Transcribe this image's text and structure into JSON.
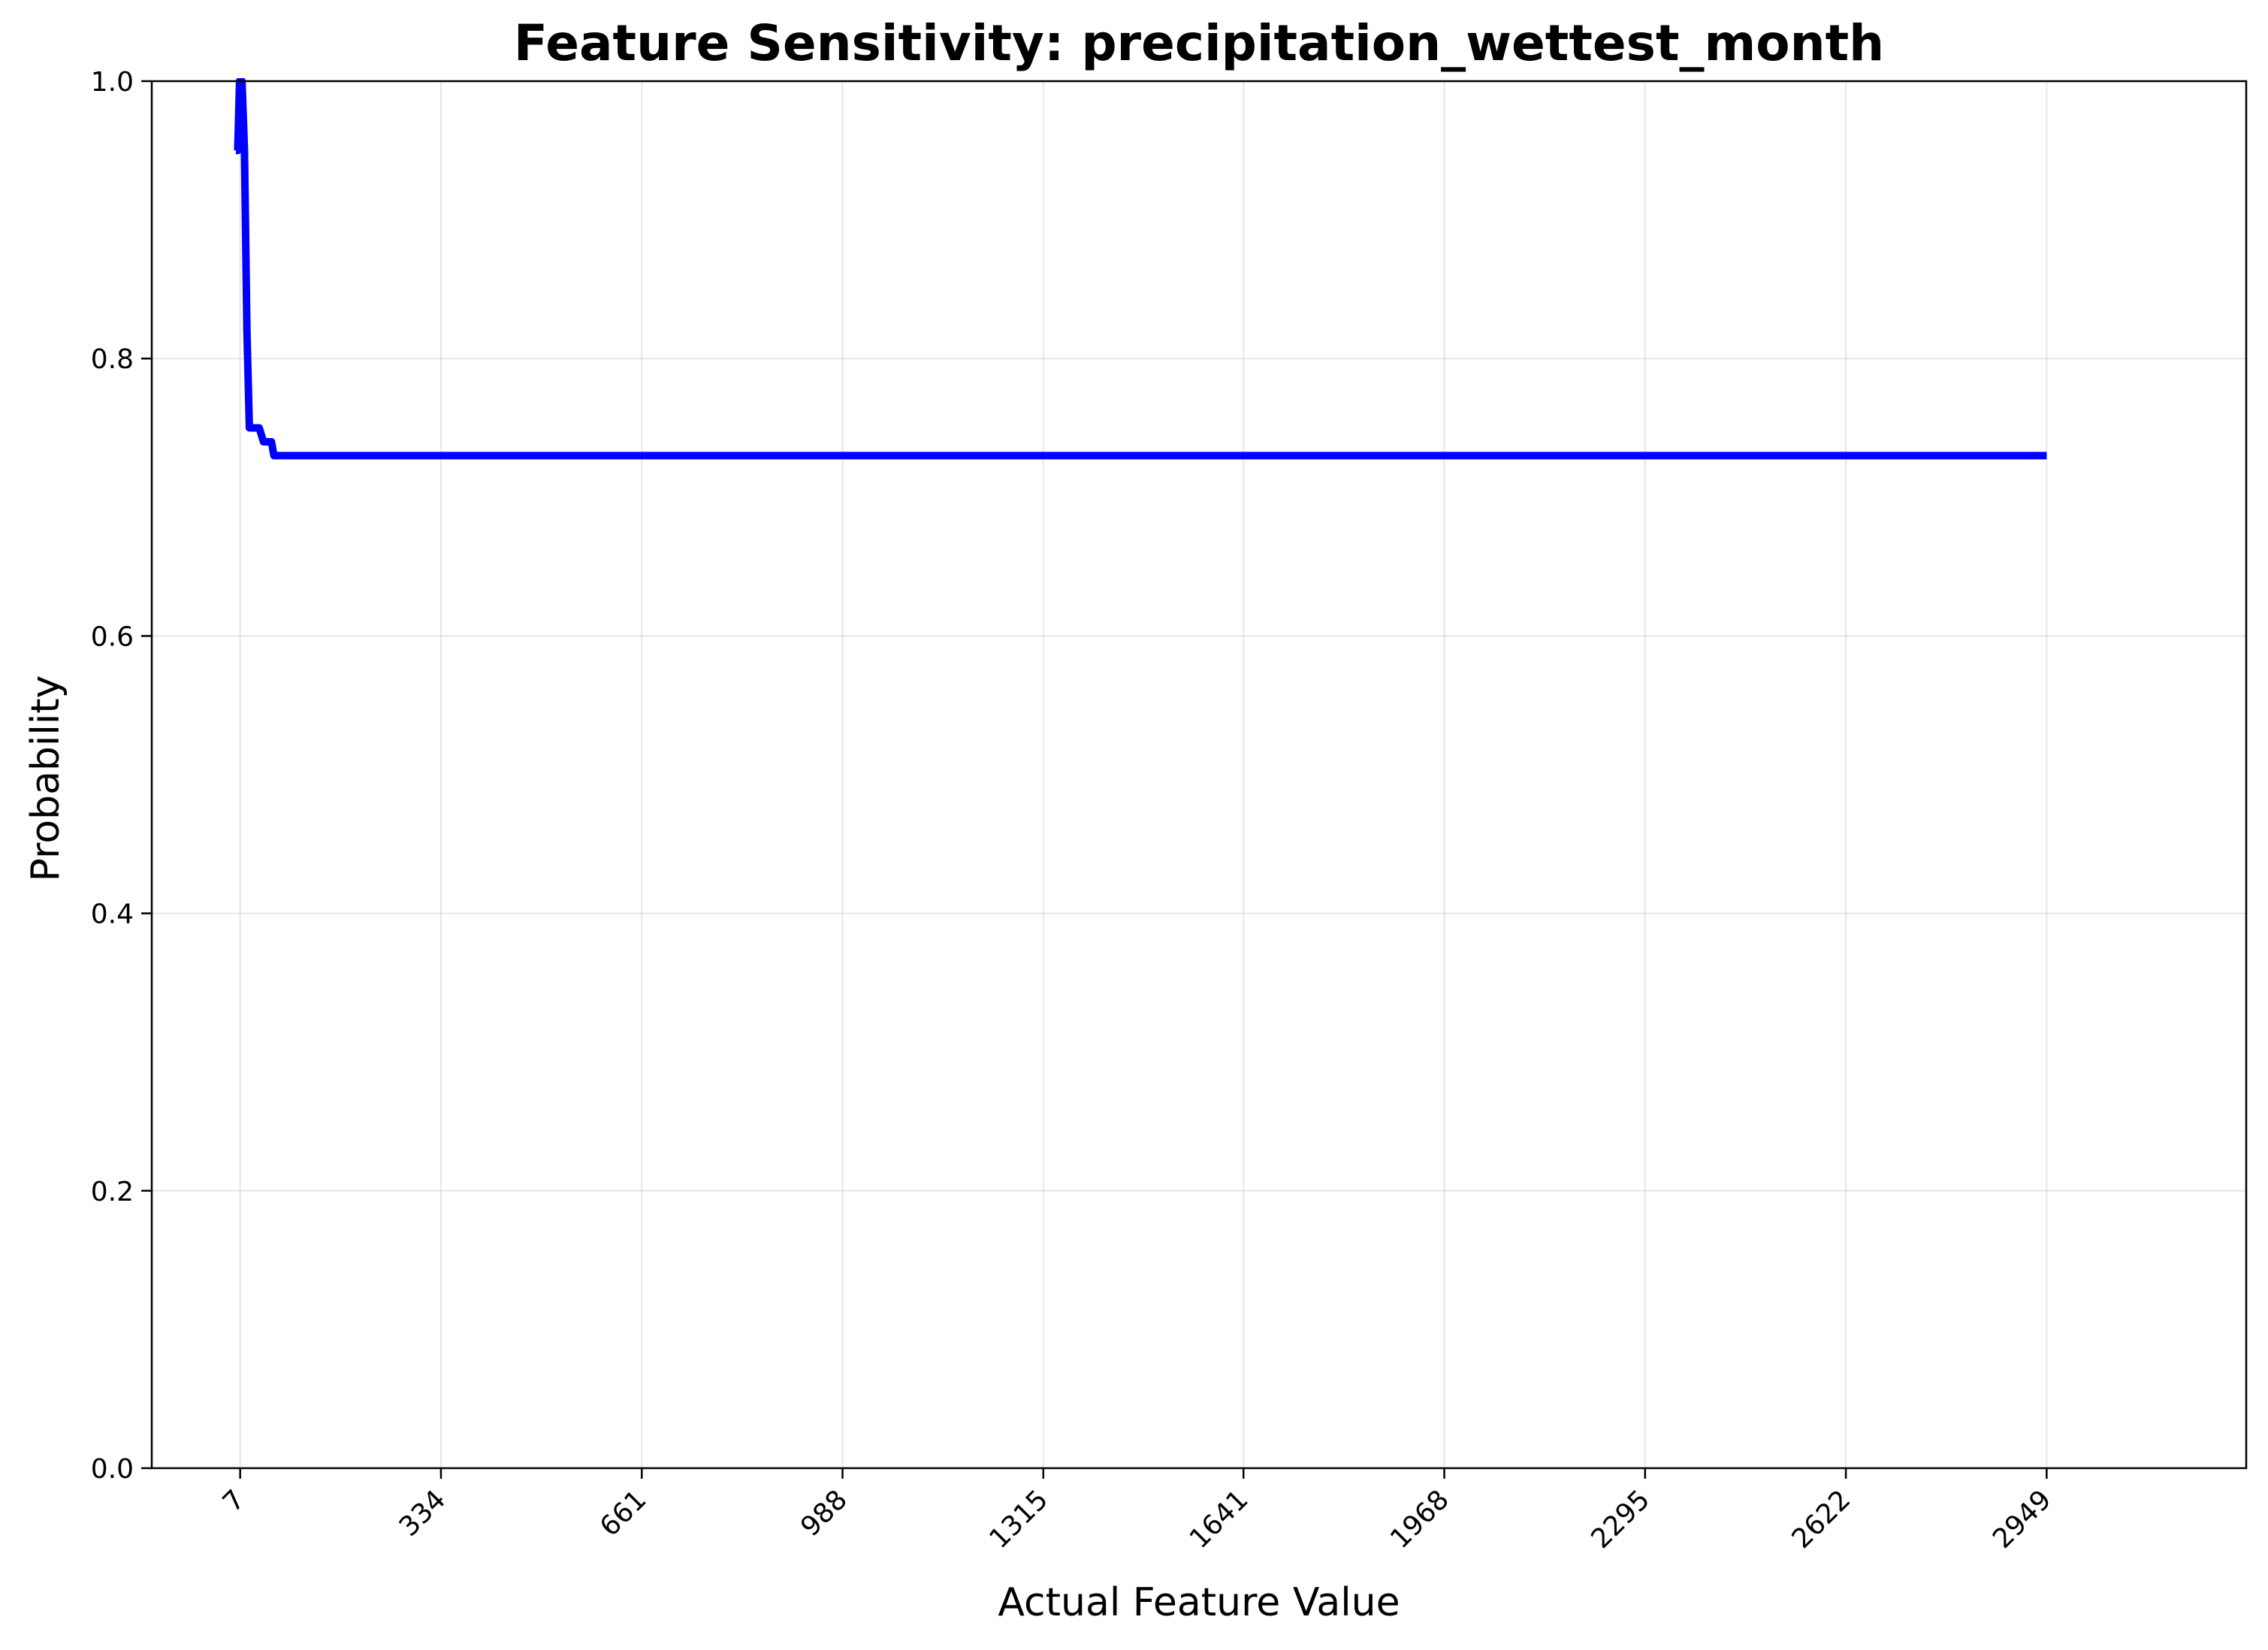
{
  "chart_data": {
    "type": "line",
    "title": "Feature Sensitivity: precipitation_wettest_month",
    "xlabel": "Actual Feature Value",
    "ylabel": "Probability",
    "xlim": [
      -137,
      3274
    ],
    "ylim": [
      0.0,
      1.0
    ],
    "grid": true,
    "legend": "none",
    "x_ticks": [
      7,
      334,
      661,
      988,
      1315,
      1641,
      1968,
      2295,
      2622,
      2949
    ],
    "x_tick_labels": [
      "7",
      "334",
      "661",
      "988",
      "1315",
      "1641",
      "1968",
      "2295",
      "2622",
      "2949"
    ],
    "y_ticks": [
      0.0,
      0.2,
      0.4,
      0.6,
      0.8,
      1.0
    ],
    "y_tick_labels": [
      "0.0",
      "0.2",
      "0.4",
      "0.6",
      "0.8",
      "1.0"
    ],
    "series": [
      {
        "color": "#0000ff",
        "x": [
          0,
          3,
          6,
          10,
          14,
          18,
          22,
          30,
          38,
          45,
          52,
          58,
          62,
          68,
          2949
        ],
        "y": [
          0.95,
          0.95,
          1.0,
          1.0,
          0.95,
          0.82,
          0.75,
          0.75,
          0.75,
          0.74,
          0.74,
          0.74,
          0.73,
          0.73,
          0.73
        ]
      }
    ]
  }
}
